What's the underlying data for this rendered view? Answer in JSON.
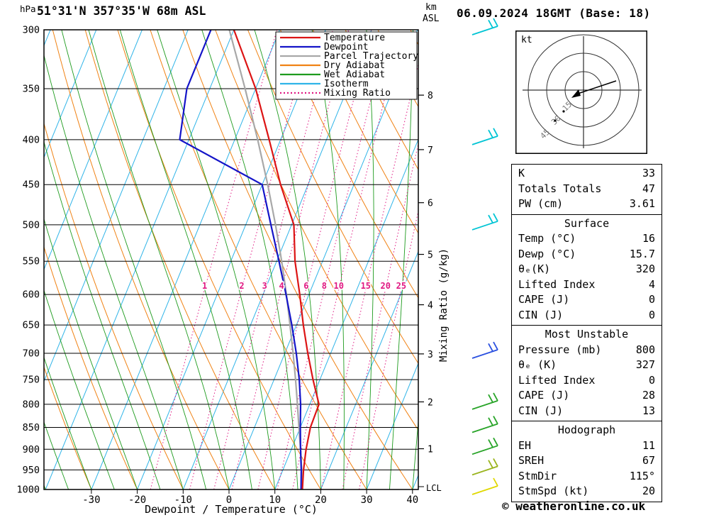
{
  "header": {
    "station_title": "51°31'N 357°35'W 68m ASL",
    "datetime_title": "06.09.2024 18GMT (Base: 18)"
  },
  "axes": {
    "pressure_unit": "hPa",
    "pressure_ticks": [
      300,
      350,
      400,
      450,
      500,
      550,
      600,
      650,
      700,
      750,
      800,
      850,
      900,
      950,
      1000
    ],
    "altitude_unit_line1": "km",
    "altitude_unit_line2": "ASL",
    "km_ticks": [
      1,
      2,
      3,
      4,
      5,
      6,
      7,
      8
    ],
    "lcl_label": "LCL",
    "x_axis_label": "Dewpoint / Temperature (°C)",
    "x_ticks": [
      -30,
      -20,
      -10,
      0,
      10,
      20,
      30,
      40
    ],
    "mixing_ratio_axis_label": "Mixing Ratio (g/kg)",
    "mixing_ratio_values": [
      1,
      2,
      3,
      4,
      6,
      8,
      10,
      15,
      20,
      25
    ]
  },
  "legend": [
    {
      "label": "Temperature",
      "color": "#dc1414",
      "style": "solid"
    },
    {
      "label": "Dewpoint",
      "color": "#1414c8",
      "style": "solid"
    },
    {
      "label": "Parcel Trajectory",
      "color": "#a8a8a8",
      "style": "solid"
    },
    {
      "label": "Dry Adiabat",
      "color": "#f08214",
      "style": "solid"
    },
    {
      "label": "Wet Adiabat",
      "color": "#1e9b1e",
      "style": "solid"
    },
    {
      "label": "Isotherm",
      "color": "#2fb4e8",
      "style": "solid"
    },
    {
      "label": "Mixing Ratio",
      "color": "#e01882",
      "style": "dotted"
    }
  ],
  "colors": {
    "temperature": "#dc1414",
    "dewpoint": "#1414c8",
    "parcel": "#a8a8a8",
    "dry_adiabat": "#f08214",
    "wet_adiabat": "#1e9b1e",
    "isotherm": "#2fb4e8",
    "mixing_ratio": "#e01882"
  },
  "chart_data": {
    "type": "line",
    "diagram": "skew-T log-p sounding",
    "pressure_axis_range_hPa": [
      300,
      1000
    ],
    "temperature_axis_range_C": [
      -40,
      40
    ],
    "temperature_profile_p_T": [
      [
        1000,
        16
      ],
      [
        950,
        14.5
      ],
      [
        900,
        13.2
      ],
      [
        850,
        12.2
      ],
      [
        800,
        12
      ],
      [
        750,
        8.5
      ],
      [
        700,
        5
      ],
      [
        650,
        1.5
      ],
      [
        600,
        -2
      ],
      [
        550,
        -6
      ],
      [
        500,
        -9.5
      ],
      [
        450,
        -16
      ],
      [
        400,
        -22.5
      ],
      [
        350,
        -30
      ],
      [
        300,
        -40
      ]
    ],
    "dewpoint_profile_p_T": [
      [
        1000,
        15.7
      ],
      [
        950,
        14
      ],
      [
        900,
        12
      ],
      [
        850,
        10
      ],
      [
        800,
        8
      ],
      [
        750,
        5.5
      ],
      [
        700,
        2.5
      ],
      [
        650,
        -1
      ],
      [
        600,
        -5
      ],
      [
        550,
        -9.5
      ],
      [
        500,
        -14.5
      ],
      [
        450,
        -20
      ],
      [
        400,
        -42
      ],
      [
        350,
        -45
      ],
      [
        300,
        -45
      ]
    ],
    "parcel_profile_p_T": [
      [
        1000,
        16
      ],
      [
        950,
        14.1
      ],
      [
        900,
        12
      ],
      [
        850,
        9.7
      ],
      [
        800,
        7.3
      ],
      [
        750,
        4.7
      ],
      [
        700,
        1.8
      ],
      [
        650,
        -1.4
      ],
      [
        600,
        -4.9
      ],
      [
        550,
        -8.9
      ],
      [
        500,
        -13.5
      ],
      [
        450,
        -18.8
      ],
      [
        400,
        -25
      ],
      [
        350,
        -32.3
      ],
      [
        300,
        -41
      ]
    ],
    "wind_barbs": [
      {
        "pressure_hPa": 300,
        "color": "#00c4d4",
        "full_barbs": 2
      },
      {
        "pressure_hPa": 400,
        "color": "#00c4d4",
        "full_barbs": 2
      },
      {
        "pressure_hPa": 500,
        "color": "#00c4d4",
        "full_barbs": 2
      },
      {
        "pressure_hPa": 700,
        "color": "#2b50e0",
        "full_barbs": 2
      },
      {
        "pressure_hPa": 800,
        "color": "#28a428",
        "full_barbs": 2
      },
      {
        "pressure_hPa": 850,
        "color": "#28a428",
        "full_barbs": 2
      },
      {
        "pressure_hPa": 900,
        "color": "#28a428",
        "full_barbs": 2
      },
      {
        "pressure_hPa": 950,
        "color": "#9ab41e",
        "full_barbs": 2
      },
      {
        "pressure_hPa": 1000,
        "color": "#e0d800",
        "full_barbs": 1
      }
    ]
  },
  "hodograph": {
    "unit_label": "kt",
    "ring_radii_kt": [
      15,
      30,
      45
    ]
  },
  "table": {
    "sections": [
      {
        "header": null,
        "rows": [
          [
            "K",
            "33"
          ],
          [
            "Totals Totals",
            "47"
          ],
          [
            "PW (cm)",
            "3.61"
          ]
        ]
      },
      {
        "header": "Surface",
        "rows": [
          [
            "Temp (°C)",
            "16"
          ],
          [
            "Dewp (°C)",
            "15.7"
          ],
          [
            "θₑ(K)",
            "320"
          ],
          [
            "Lifted Index",
            "4"
          ],
          [
            "CAPE (J)",
            "0"
          ],
          [
            "CIN (J)",
            "0"
          ]
        ]
      },
      {
        "header": "Most Unstable",
        "rows": [
          [
            "Pressure (mb)",
            "800"
          ],
          [
            "θₑ (K)",
            "327"
          ],
          [
            "Lifted Index",
            "0"
          ],
          [
            "CAPE (J)",
            "28"
          ],
          [
            "CIN (J)",
            "13"
          ]
        ]
      },
      {
        "header": "Hodograph",
        "rows": [
          [
            "EH",
            "11"
          ],
          [
            "SREH",
            "67"
          ],
          [
            "StmDir",
            "115°"
          ],
          [
            "StmSpd (kt)",
            "20"
          ]
        ]
      }
    ]
  },
  "footer": "© weatheronline.co.uk"
}
